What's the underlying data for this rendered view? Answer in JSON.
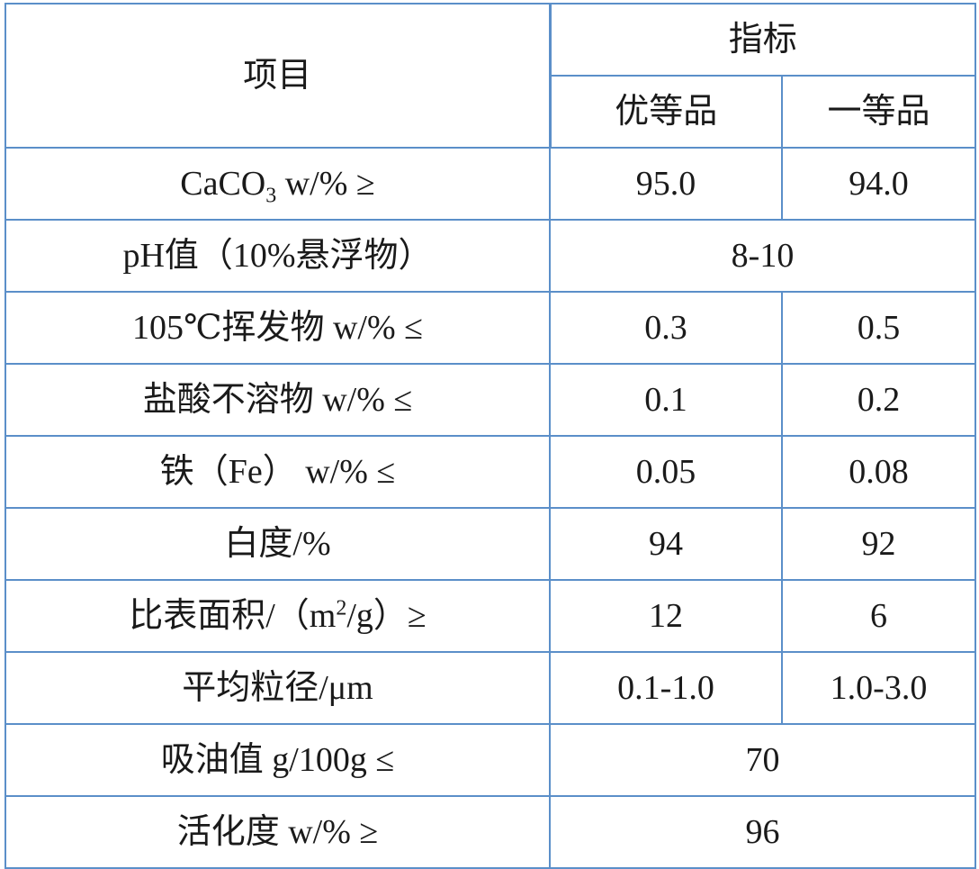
{
  "table": {
    "header": {
      "item": "项目",
      "group": "指标",
      "grade1": "优等品",
      "grade2": "一等品"
    },
    "rows": [
      {
        "name_pre": "CaCO",
        "name_sub": "3",
        "name_post": " w/% ≥",
        "v1": "95.0",
        "v2": "94.0"
      },
      {
        "name": "pH值（10%悬浮物）",
        "merged": "8-10"
      },
      {
        "name": "105℃挥发物 w/% ≤",
        "v1": "0.3",
        "v2": "0.5"
      },
      {
        "name": "盐酸不溶物 w/% ≤",
        "v1": "0.1",
        "v2": "0.2"
      },
      {
        "name": "铁（Fe） w/% ≤",
        "v1": "0.05",
        "v2": "0.08"
      },
      {
        "name": "白度/%",
        "v1": "94",
        "v2": "92"
      },
      {
        "name_pre": "比表面积/（m",
        "name_sup": "2",
        "name_post": "/g）≥",
        "v1": "12",
        "v2": "6"
      },
      {
        "name": "平均粒径/μm",
        "v1": "0.1-1.0",
        "v2": "1.0-3.0"
      },
      {
        "name": "吸油值 g/100g ≤",
        "merged": "70"
      },
      {
        "name": "活化度 w/% ≥",
        "merged": "96"
      }
    ]
  }
}
